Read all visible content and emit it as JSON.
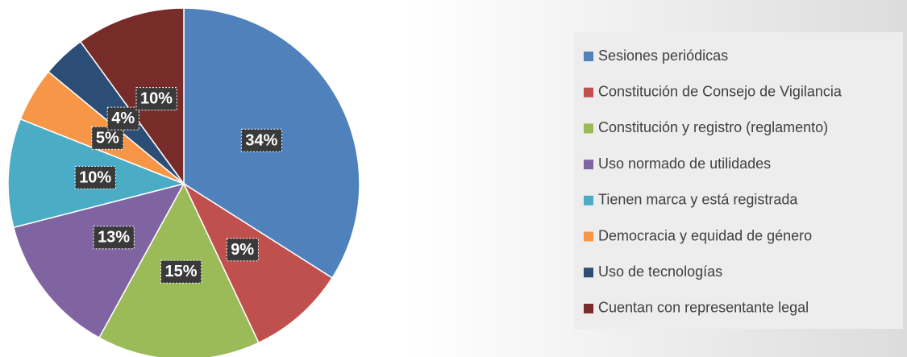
{
  "chart_data": {
    "type": "pie",
    "categories": [
      "Sesiones periódicas",
      "Constitución de Consejo de Vigilancia",
      "Constitución y registro (reglamento)",
      "Uso normado de utilidades",
      "Tienen marca y está registrada",
      "Democracia y equidad de género",
      "Uso de tecnologías",
      "Cuentan con representante legal"
    ],
    "values": [
      34,
      9,
      15,
      13,
      10,
      5,
      4,
      10
    ],
    "value_labels": [
      "34%",
      "9%",
      "15%",
      "13%",
      "10%",
      "5%",
      "4%",
      "10%"
    ],
    "colors": [
      "#4f81bd",
      "#c0504d",
      "#9bbb59",
      "#8064a2",
      "#4bacc6",
      "#f79646",
      "#2c4d75",
      "#772c2a"
    ],
    "legend": "right"
  }
}
